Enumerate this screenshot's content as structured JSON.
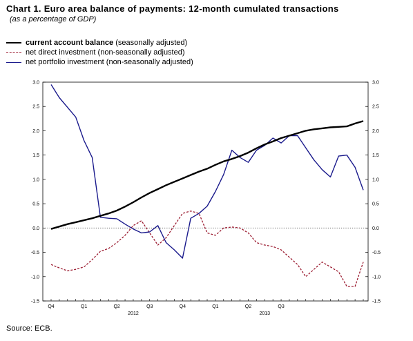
{
  "title": "Chart 1. Euro area balance of payments: 12-month cumulated transactions",
  "subtitle": "(as a percentage of GDP)",
  "legend": [
    {
      "bold": "current account balance",
      "rest": " (seasonally adjusted)"
    },
    {
      "bold": "",
      "rest": "net direct investment (non-seasonally adjusted)"
    },
    {
      "bold": "",
      "rest": "net portfolio investment (non-seasonally adjusted)"
    }
  ],
  "source": "Source: ECB.",
  "chart_data": {
    "type": "line",
    "ylim": [
      -1.5,
      3.0
    ],
    "yticks": [
      3.0,
      2.5,
      2.0,
      1.5,
      1.0,
      0.5,
      0.0,
      -0.5,
      -1.0,
      -1.5
    ],
    "ytick_labels": [
      "3.0",
      "2.5",
      "2.0",
      "1.5",
      "1.0",
      "0.5",
      "0.0",
      "-0.5",
      "-1.0",
      "-1.5"
    ],
    "zero_line": true,
    "grid": false,
    "legend_position": "top-left",
    "quarter_labels": [
      {
        "label": "Q4",
        "index": 0
      },
      {
        "label": "Q1",
        "index": 4
      },
      {
        "label": "Q2",
        "index": 8
      },
      {
        "label": "Q3",
        "index": 12
      },
      {
        "label": "Q4",
        "index": 16
      },
      {
        "label": "Q1",
        "index": 20
      },
      {
        "label": "Q2",
        "index": 24
      },
      {
        "label": "Q3",
        "index": 28
      }
    ],
    "year_labels": [
      {
        "label": "2012",
        "index": 10
      },
      {
        "label": "2013",
        "index": 26
      }
    ],
    "series": [
      {
        "name": "current account balance",
        "color": "#000000",
        "style": "solid",
        "values": [
          -0.02,
          0.03,
          0.08,
          0.12,
          0.16,
          0.2,
          0.25,
          0.3,
          0.36,
          0.44,
          0.53,
          0.63,
          0.72,
          0.8,
          0.88,
          0.95,
          1.02,
          1.09,
          1.16,
          1.22,
          1.3,
          1.37,
          1.42,
          1.48,
          1.55,
          1.64,
          1.72,
          1.78,
          1.85,
          1.9,
          1.95,
          2.0,
          2.03,
          2.05,
          2.07,
          2.08,
          2.09,
          2.15,
          2.2
        ]
      },
      {
        "name": "net direct investment",
        "color": "#9b1b30",
        "style": "dashed",
        "values": [
          -0.75,
          -0.82,
          -0.88,
          -0.85,
          -0.8,
          -0.65,
          -0.48,
          -0.42,
          -0.3,
          -0.15,
          0.05,
          0.15,
          -0.1,
          -0.35,
          -0.2,
          0.05,
          0.3,
          0.35,
          0.3,
          -0.1,
          -0.15,
          0.0,
          0.02,
          0.0,
          -0.1,
          -0.3,
          -0.35,
          -0.38,
          -0.45,
          -0.6,
          -0.75,
          -1.0,
          -0.85,
          -0.7,
          -0.8,
          -0.9,
          -1.2,
          -1.2,
          -0.7
        ]
      },
      {
        "name": "net portfolio investment",
        "color": "#1a1a8c",
        "style": "solid",
        "values": [
          2.95,
          2.68,
          2.48,
          2.28,
          1.8,
          1.45,
          0.22,
          0.2,
          0.19,
          0.08,
          -0.02,
          -0.1,
          -0.08,
          0.05,
          -0.3,
          -0.45,
          -0.62,
          0.2,
          0.3,
          0.45,
          0.75,
          1.1,
          1.6,
          1.45,
          1.35,
          1.6,
          1.7,
          1.85,
          1.75,
          1.9,
          1.9,
          1.65,
          1.4,
          1.2,
          1.05,
          1.48,
          1.5,
          1.25,
          0.78
        ]
      }
    ]
  }
}
